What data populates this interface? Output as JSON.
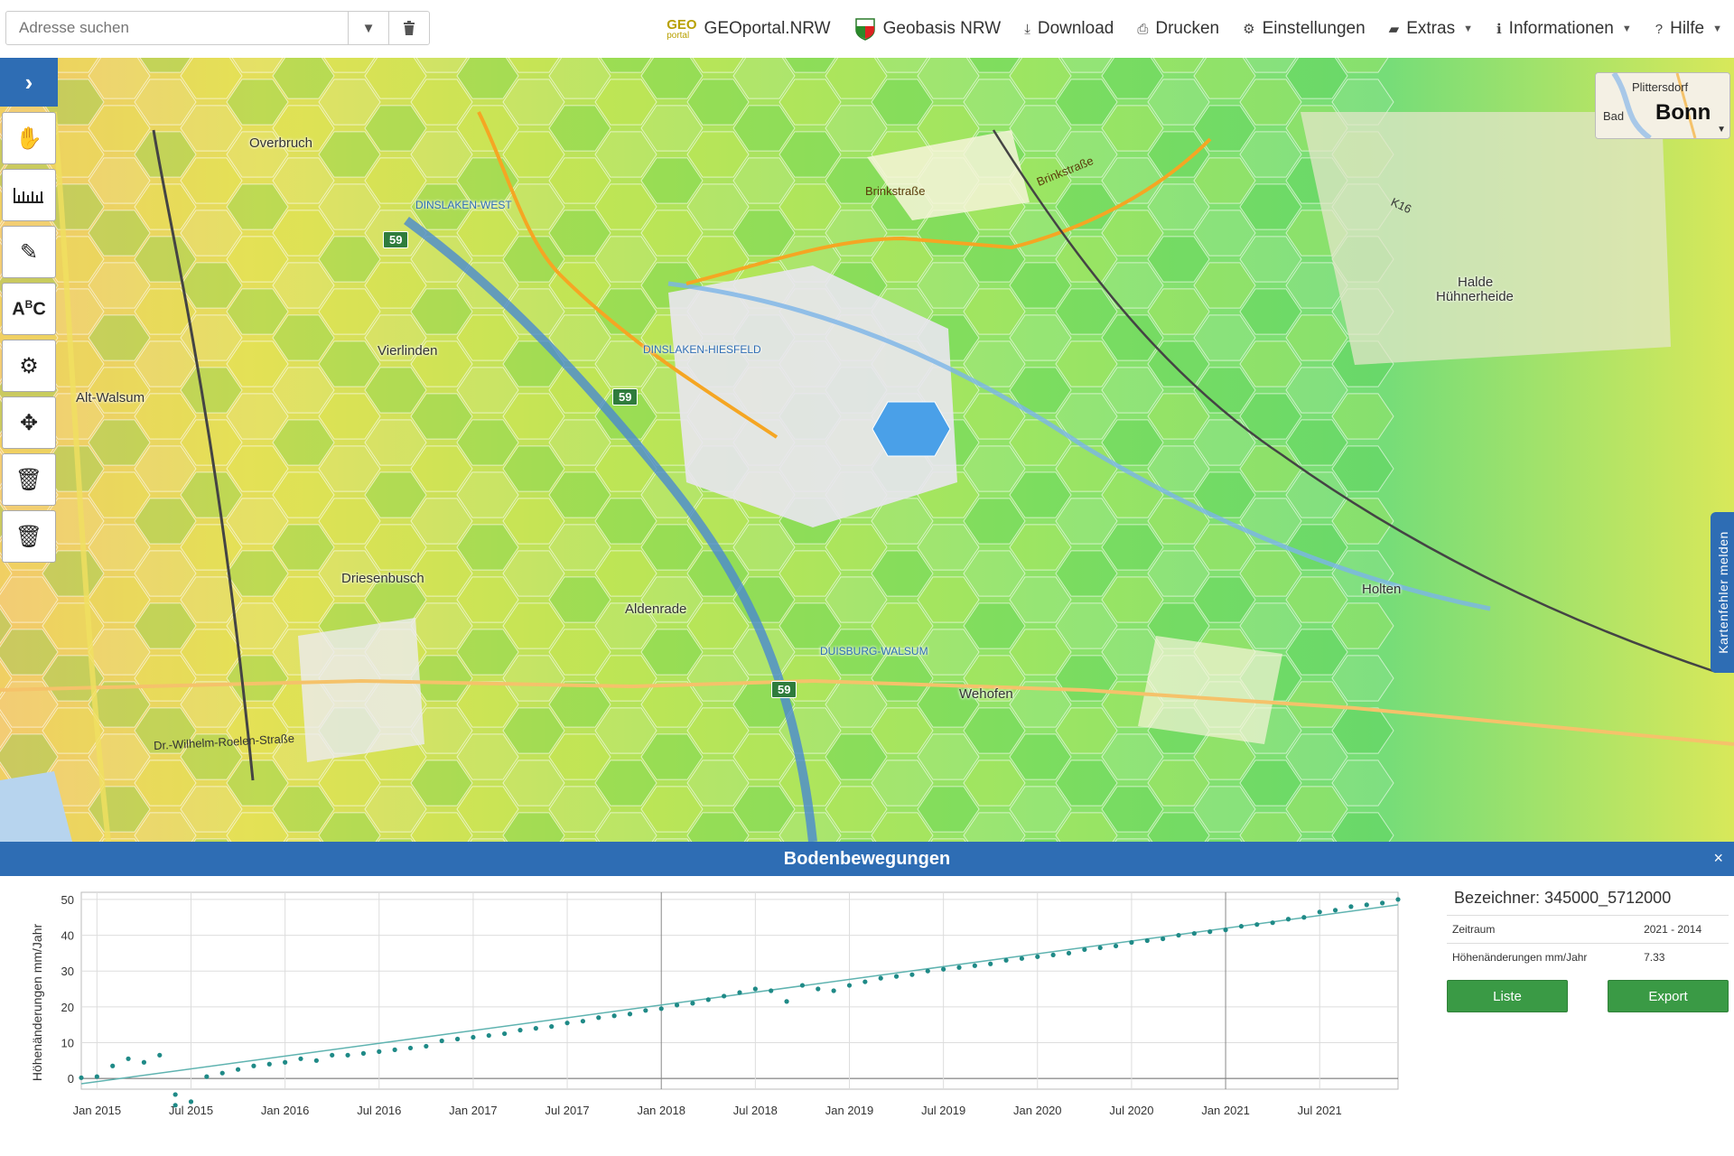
{
  "search": {
    "placeholder": "Adresse suchen"
  },
  "nav": {
    "geo_logo_top": "GEO",
    "geo_logo_bottom": "portal",
    "geoportal": "GEOportal.NRW",
    "geobasis": "Geobasis NRW",
    "download": "Download",
    "drucken": "Drucken",
    "einstellungen": "Einstellungen",
    "extras": "Extras",
    "informationen": "Informationen",
    "hilfe": "Hilfe"
  },
  "overview": {
    "place1": "Plittersdorf",
    "place2": "Bad",
    "city": "Bonn"
  },
  "sidetab": "Kartenfehler melden",
  "map_labels": {
    "overbruch": "Overbruch",
    "dinslaken_west": "DINSLAKEN-WEST",
    "vierlinden": "Vierlinden",
    "alt_walsum": "Alt-Walsum",
    "dinslaken_hiesfeld": "DINSLAKEN-HIESFELD",
    "driesenbusch": "Driesenbusch",
    "aldenrade": "Aldenrade",
    "duisburg_walsum": "DUISBURG-WALSUM",
    "wehofen": "Wehofen",
    "holten": "Holten",
    "halde": "Halde",
    "huehnerheide": "Hühnerheide",
    "brinkstrasse": "Brinkstraße",
    "brinkstrasse2": "Brinkstraße",
    "a59": "59",
    "k16": "K16",
    "dr_wilhelm": "Dr.-Wilhelm-Roelen-Straße"
  },
  "panel": {
    "title": "Bodenbewegungen",
    "close": "×",
    "bezeichner": "Bezeichner: 345000_5712000",
    "rows": [
      {
        "label": "Zeitraum",
        "value": "2021 - 2014"
      },
      {
        "label": "Höhenänderungen mm/Jahr",
        "value": "7.33"
      }
    ],
    "liste": "Liste",
    "export": "Export"
  },
  "colors": {
    "primary": "#2e6db4",
    "button": "#3a9a45",
    "series": "#1f8a87"
  },
  "chart_data": {
    "type": "scatter",
    "ylabel": "Höhenänderungen mm/Jahr",
    "xlabel": "",
    "ylim": [
      -3,
      52
    ],
    "x_ticks": [
      "Jan 2015",
      "Jul 2015",
      "Jan 2016",
      "Jul 2016",
      "Jan 2017",
      "Jul 2017",
      "Jan 2018",
      "Jul 2018",
      "Jan 2019",
      "Jul 2019",
      "Jan 2020",
      "Jul 2020",
      "Jan 2021",
      "Jul 2021"
    ],
    "y_ticks": [
      0,
      10,
      20,
      30,
      40,
      50
    ],
    "trend": {
      "start": [
        "2014-12",
        -1.5
      ],
      "end": [
        "2021-12",
        48.5
      ]
    },
    "series": [
      {
        "values": [
          [
            "2014-12",
            0.2
          ],
          [
            "2015-01",
            0.5
          ],
          [
            "2015-02",
            3.5
          ],
          [
            "2015-03",
            5.5
          ],
          [
            "2015-04",
            4.5
          ],
          [
            "2015-05",
            6.5
          ],
          [
            "2015-06",
            -4.5
          ],
          [
            "2015-06",
            -7.5
          ],
          [
            "2015-07",
            -6.5
          ],
          [
            "2015-08",
            0.5
          ],
          [
            "2015-09",
            1.5
          ],
          [
            "2015-10",
            2.5
          ],
          [
            "2015-11",
            3.5
          ],
          [
            "2015-12",
            4.0
          ],
          [
            "2016-01",
            4.5
          ],
          [
            "2016-02",
            5.5
          ],
          [
            "2016-03",
            5.0
          ],
          [
            "2016-04",
            6.5
          ],
          [
            "2016-05",
            6.5
          ],
          [
            "2016-06",
            7.0
          ],
          [
            "2016-07",
            7.5
          ],
          [
            "2016-08",
            8.0
          ],
          [
            "2016-09",
            8.5
          ],
          [
            "2016-10",
            9.0
          ],
          [
            "2016-11",
            10.5
          ],
          [
            "2016-12",
            11.0
          ],
          [
            "2017-01",
            11.5
          ],
          [
            "2017-02",
            12.0
          ],
          [
            "2017-03",
            12.5
          ],
          [
            "2017-04",
            13.5
          ],
          [
            "2017-05",
            14.0
          ],
          [
            "2017-06",
            14.5
          ],
          [
            "2017-07",
            15.5
          ],
          [
            "2017-08",
            16.0
          ],
          [
            "2017-09",
            17.0
          ],
          [
            "2017-10",
            17.5
          ],
          [
            "2017-11",
            18.0
          ],
          [
            "2017-12",
            19.0
          ],
          [
            "2018-01",
            19.5
          ],
          [
            "2018-02",
            20.5
          ],
          [
            "2018-03",
            21.0
          ],
          [
            "2018-04",
            22.0
          ],
          [
            "2018-05",
            23.0
          ],
          [
            "2018-06",
            24.0
          ],
          [
            "2018-07",
            25.0
          ],
          [
            "2018-08",
            24.5
          ],
          [
            "2018-09",
            21.5
          ],
          [
            "2018-10",
            26.0
          ],
          [
            "2018-11",
            25.0
          ],
          [
            "2018-12",
            24.5
          ],
          [
            "2019-01",
            26.0
          ],
          [
            "2019-02",
            27.0
          ],
          [
            "2019-03",
            28.0
          ],
          [
            "2019-04",
            28.5
          ],
          [
            "2019-05",
            29.0
          ],
          [
            "2019-06",
            30.0
          ],
          [
            "2019-07",
            30.5
          ],
          [
            "2019-08",
            31.0
          ],
          [
            "2019-09",
            31.5
          ],
          [
            "2019-10",
            32.0
          ],
          [
            "2019-11",
            33.0
          ],
          [
            "2019-12",
            33.5
          ],
          [
            "2020-01",
            34.0
          ],
          [
            "2020-02",
            34.5
          ],
          [
            "2020-03",
            35.0
          ],
          [
            "2020-04",
            36.0
          ],
          [
            "2020-05",
            36.5
          ],
          [
            "2020-06",
            37.0
          ],
          [
            "2020-07",
            38.0
          ],
          [
            "2020-08",
            38.5
          ],
          [
            "2020-09",
            39.0
          ],
          [
            "2020-10",
            40.0
          ],
          [
            "2020-11",
            40.5
          ],
          [
            "2020-12",
            41.0
          ],
          [
            "2021-01",
            41.5
          ],
          [
            "2021-02",
            42.5
          ],
          [
            "2021-03",
            43.0
          ],
          [
            "2021-04",
            43.5
          ],
          [
            "2021-05",
            44.5
          ],
          [
            "2021-06",
            45.0
          ],
          [
            "2021-07",
            46.5
          ],
          [
            "2021-08",
            47.0
          ],
          [
            "2021-09",
            48.0
          ],
          [
            "2021-10",
            48.5
          ],
          [
            "2021-11",
            49.0
          ],
          [
            "2021-12",
            50.0
          ]
        ]
      }
    ]
  }
}
